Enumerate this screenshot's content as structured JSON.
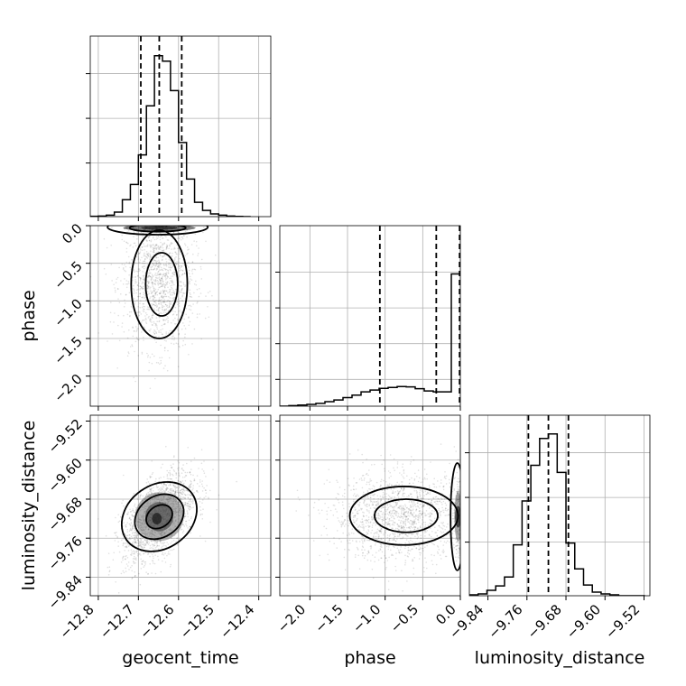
{
  "chart_data": {
    "type": "corner",
    "parameters": [
      "geocent_time",
      "phase",
      "luminosity_distance"
    ],
    "axis_labels": {
      "x": [
        "geocent_time",
        "phase",
        "luminosity_distance"
      ],
      "y": [
        "",
        "phase",
        "luminosity_distance"
      ]
    },
    "grid": true,
    "ranges": {
      "geocent_time": [
        -12.82,
        -12.37
      ],
      "phase": [
        -2.4,
        0.0
      ],
      "luminosity_distance": [
        -9.878,
        -9.508
      ]
    },
    "ticks": {
      "geocent_time": {
        "values": [
          -12.8,
          -12.7,
          -12.6,
          -12.5,
          -12.4
        ],
        "labels": [
          "−12.8",
          "−12.7",
          "−12.6",
          "−12.5",
          "−12.4"
        ]
      },
      "phase": {
        "values": [
          -2.0,
          -1.5,
          -1.0,
          -0.5,
          0.0
        ],
        "labels": [
          "−2.0",
          "−1.5",
          "−1.0",
          "−0.5",
          "0.0"
        ]
      },
      "phase_y": {
        "values": [
          -2.0,
          -1.5,
          -1.0,
          -0.5,
          0.0
        ],
        "labels": [
          "−2.0",
          "−1.5",
          "−1.0",
          "−0.5",
          "0.0"
        ]
      },
      "luminosity_distance": {
        "values": [
          -9.84,
          -9.76,
          -9.68,
          -9.6,
          -9.52
        ],
        "labels": [
          "−9.84",
          "−9.76",
          "−9.68",
          "−9.60",
          "−9.52"
        ]
      }
    },
    "histograms": {
      "geocent_time": {
        "edges": [
          -12.82,
          -12.8,
          -12.78,
          -12.76,
          -12.74,
          -12.72,
          -12.7,
          -12.68,
          -12.66,
          -12.64,
          -12.62,
          -12.6,
          -12.58,
          -12.56,
          -12.54,
          -12.52,
          -12.5,
          -12.48,
          -12.46,
          -12.44,
          -12.42
        ],
        "counts": [
          2,
          3,
          8,
          25,
          95,
          180,
          345,
          620,
          900,
          870,
          705,
          415,
          210,
          80,
          35,
          15,
          8,
          3,
          1,
          0
        ],
        "ymax": 1010,
        "quantiles": [
          -12.694,
          -12.648,
          -12.592
        ],
        "ytick_counts": [
          300,
          550,
          800
        ]
      },
      "phase": {
        "edges": [
          -2.4,
          -2.28,
          -2.16,
          -2.04,
          -1.92,
          -1.8,
          -1.68,
          -1.56,
          -1.44,
          -1.32,
          -1.2,
          -1.08,
          -0.96,
          -0.84,
          -0.72,
          -0.6,
          -0.48,
          -0.36,
          -0.24,
          -0.12,
          0.0
        ],
        "counts": [
          0,
          3,
          6,
          10,
          16,
          25,
          35,
          48,
          62,
          80,
          90,
          100,
          105,
          110,
          108,
          98,
          85,
          80,
          80,
          740
        ],
        "ymax": 1010,
        "quantiles": [
          -1.07,
          -0.32,
          -0.01
        ],
        "ytick_counts": [
          150,
          350,
          550,
          750
        ]
      },
      "luminosity_distance": {
        "edges": [
          -9.878,
          -9.86,
          -9.842,
          -9.824,
          -9.806,
          -9.788,
          -9.77,
          -9.752,
          -9.734,
          -9.716,
          -9.698,
          -9.68,
          -9.662,
          -9.644,
          -9.626,
          -9.608,
          -9.59,
          -9.572,
          -9.554,
          -9.536,
          -9.518
        ],
        "counts": [
          5,
          10,
          30,
          55,
          105,
          285,
          530,
          730,
          880,
          905,
          690,
          295,
          150,
          60,
          20,
          10,
          5,
          0,
          0,
          0
        ],
        "ymax": 1010,
        "quantiles": [
          -9.757,
          -9.716,
          -9.675
        ],
        "ytick_counts": [
          300,
          550,
          800
        ]
      }
    },
    "densities": {
      "phase_vs_geocent_time": {
        "x": "geocent_time",
        "y": "phase",
        "peaks": [
          {
            "x": -12.648,
            "y": -0.01,
            "sx": 0.04,
            "sy": 0.04,
            "n": 380
          },
          {
            "x": -12.65,
            "y": -0.75,
            "sx": 0.045,
            "sy": 0.45,
            "n": 1400
          }
        ],
        "blobs": [
          {
            "x": -12.648,
            "y": -0.03,
            "rx": 0.09,
            "ry": 0.045,
            "level": 0.9
          },
          {
            "x": -12.648,
            "y": -0.03,
            "rx": 0.045,
            "ry": 0.025,
            "level": 1.0
          }
        ],
        "contours": [
          {
            "cx": -12.652,
            "cy": -0.02,
            "rx": 0.125,
            "ry": 0.1
          },
          {
            "cx": -12.652,
            "cy": -0.03,
            "rx": 0.07,
            "ry": 0.05
          },
          {
            "cx": -12.648,
            "cy": -0.78,
            "rx": 0.07,
            "ry": 0.72
          },
          {
            "cx": -12.642,
            "cy": -0.78,
            "rx": 0.04,
            "ry": 0.42
          }
        ]
      },
      "luminosity_distance_vs_geocent_time": {
        "x": "geocent_time",
        "y": "luminosity_distance",
        "peaks": [
          {
            "x": -12.648,
            "y": -9.716,
            "sx": 0.045,
            "sy": 0.045,
            "n": 2000,
            "rho": 0.55
          }
        ],
        "blobs": [
          {
            "x": -12.648,
            "y": -9.716,
            "rx": 0.06,
            "ry": 0.05,
            "level": 0.55
          },
          {
            "x": -12.648,
            "y": -9.716,
            "rx": 0.035,
            "ry": 0.03,
            "level": 0.8
          },
          {
            "x": -12.654,
            "y": -9.72,
            "rx": 0.012,
            "ry": 0.012,
            "level": 1.0
          }
        ],
        "contours": [
          {
            "cx": -12.648,
            "cy": -9.716,
            "rx": 0.1,
            "ry": 0.065,
            "angle": -35
          },
          {
            "cx": -12.648,
            "cy": -9.716,
            "rx": 0.065,
            "ry": 0.042,
            "angle": -35
          },
          {
            "cx": -12.648,
            "cy": -9.716,
            "rx": 0.035,
            "ry": 0.022,
            "angle": -35
          }
        ]
      },
      "luminosity_distance_vs_phase": {
        "x": "phase",
        "y": "luminosity_distance",
        "peaks": [
          {
            "x": -0.8,
            "y": -9.716,
            "sx": 0.45,
            "sy": 0.045,
            "n": 1500
          },
          {
            "x": -0.01,
            "y": -9.716,
            "sx": 0.03,
            "sy": 0.045,
            "n": 400
          }
        ],
        "blobs": [
          {
            "x": -0.03,
            "y": -9.716,
            "rx": 0.05,
            "ry": 0.05,
            "level": 0.6
          },
          {
            "x": -0.03,
            "y": -9.716,
            "rx": 0.04,
            "ry": 0.022,
            "level": 1.0
          }
        ],
        "contours": [
          {
            "cx": -0.75,
            "cy": -9.714,
            "rx": 0.72,
            "ry": 0.06
          },
          {
            "cx": -0.72,
            "cy": -9.714,
            "rx": 0.42,
            "ry": 0.034
          },
          {
            "cx": -0.04,
            "cy": -9.716,
            "rx": 0.09,
            "ry": 0.11
          }
        ]
      }
    }
  }
}
